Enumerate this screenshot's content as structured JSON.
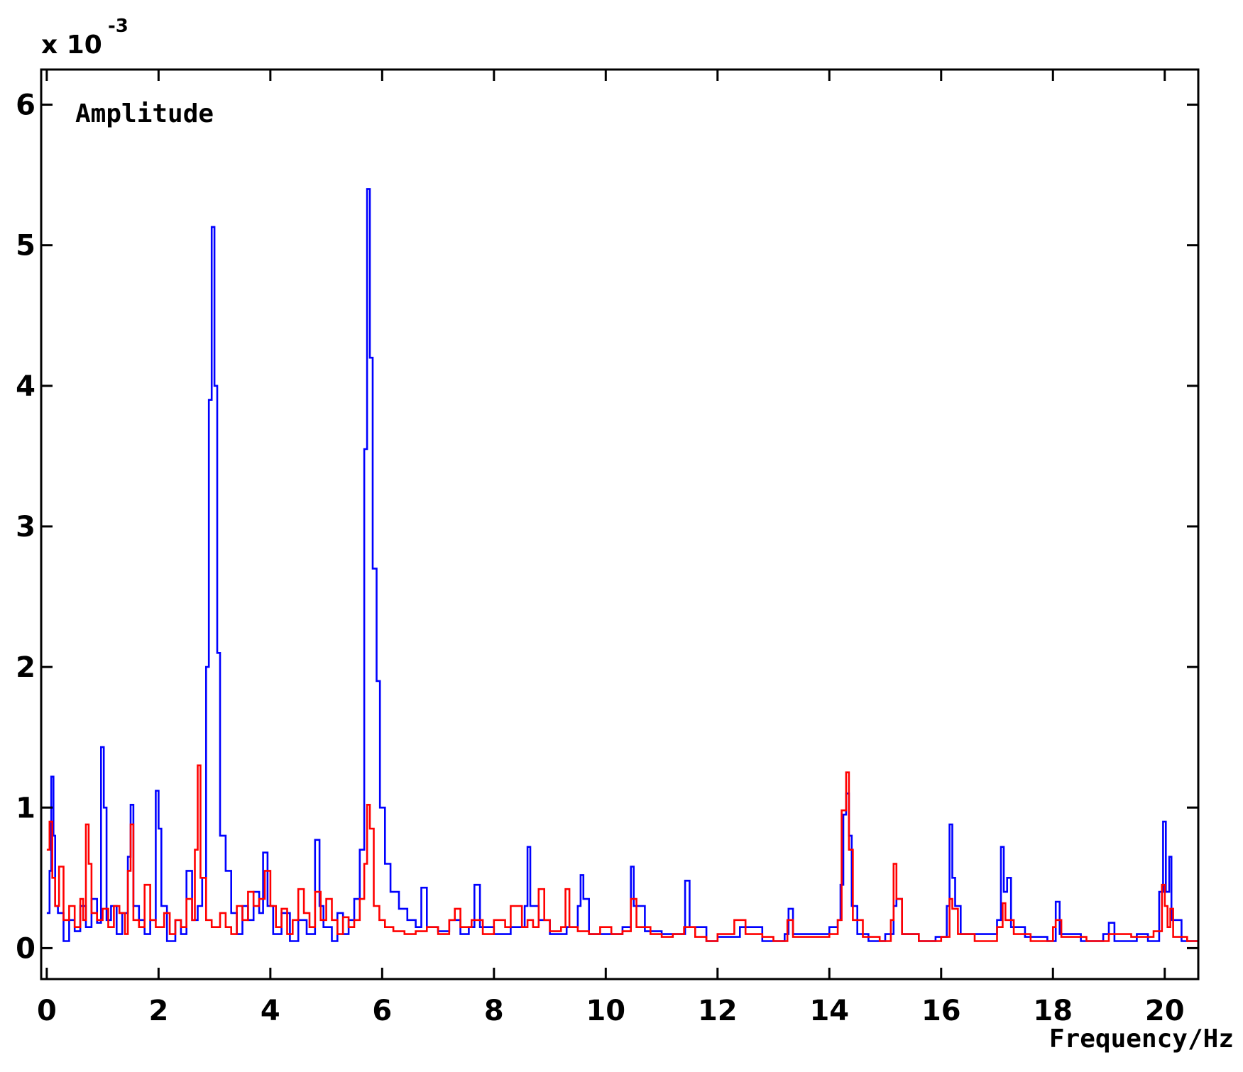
{
  "chart_data": {
    "type": "line",
    "title": "",
    "xlabel": "Frequency/Hz",
    "ylabel": "Amplitude",
    "y_scale_label": "x 10",
    "y_scale_exponent": "-3",
    "xlim": [
      -0.1,
      20.6
    ],
    "ylim": [
      -0.22,
      6.25
    ],
    "x_ticks": [
      0,
      2,
      4,
      6,
      8,
      10,
      12,
      14,
      16,
      18,
      20
    ],
    "y_ticks": [
      0,
      1,
      2,
      3,
      4,
      5,
      6
    ],
    "x_tick_labels": [
      "0",
      "2",
      "4",
      "6",
      "8",
      "10",
      "12",
      "14",
      "16",
      "18",
      "20"
    ],
    "y_tick_labels": [
      "0",
      "1",
      "2",
      "3",
      "4",
      "5",
      "6"
    ],
    "grid": false,
    "legend": "none",
    "series": [
      {
        "color": "#0000ff",
        "points": [
          [
            0.0,
            0.25
          ],
          [
            0.05,
            0.55
          ],
          [
            0.08,
            1.22
          ],
          [
            0.12,
            0.8
          ],
          [
            0.15,
            0.3
          ],
          [
            0.2,
            0.25
          ],
          [
            0.3,
            0.05
          ],
          [
            0.4,
            0.2
          ],
          [
            0.5,
            0.12
          ],
          [
            0.6,
            0.3
          ],
          [
            0.7,
            0.15
          ],
          [
            0.8,
            0.35
          ],
          [
            0.9,
            0.18
          ],
          [
            0.97,
            1.43
          ],
          [
            1.02,
            1.0
          ],
          [
            1.07,
            0.2
          ],
          [
            1.15,
            0.3
          ],
          [
            1.25,
            0.1
          ],
          [
            1.35,
            0.25
          ],
          [
            1.45,
            0.65
          ],
          [
            1.5,
            1.02
          ],
          [
            1.55,
            0.3
          ],
          [
            1.65,
            0.2
          ],
          [
            1.75,
            0.1
          ],
          [
            1.85,
            0.2
          ],
          [
            1.95,
            1.12
          ],
          [
            2.0,
            0.85
          ],
          [
            2.05,
            0.3
          ],
          [
            2.15,
            0.05
          ],
          [
            2.3,
            0.2
          ],
          [
            2.4,
            0.1
          ],
          [
            2.5,
            0.55
          ],
          [
            2.6,
            0.2
          ],
          [
            2.7,
            0.3
          ],
          [
            2.78,
            0.5
          ],
          [
            2.85,
            2.0
          ],
          [
            2.9,
            3.9
          ],
          [
            2.95,
            5.13
          ],
          [
            3.0,
            4.0
          ],
          [
            3.05,
            2.1
          ],
          [
            3.1,
            0.8
          ],
          [
            3.2,
            0.55
          ],
          [
            3.3,
            0.25
          ],
          [
            3.4,
            0.1
          ],
          [
            3.5,
            0.3
          ],
          [
            3.6,
            0.2
          ],
          [
            3.7,
            0.4
          ],
          [
            3.8,
            0.25
          ],
          [
            3.87,
            0.68
          ],
          [
            3.95,
            0.3
          ],
          [
            4.05,
            0.1
          ],
          [
            4.2,
            0.25
          ],
          [
            4.35,
            0.05
          ],
          [
            4.5,
            0.2
          ],
          [
            4.65,
            0.1
          ],
          [
            4.8,
            0.77
          ],
          [
            4.88,
            0.3
          ],
          [
            4.95,
            0.15
          ],
          [
            5.1,
            0.05
          ],
          [
            5.2,
            0.25
          ],
          [
            5.3,
            0.1
          ],
          [
            5.4,
            0.2
          ],
          [
            5.5,
            0.35
          ],
          [
            5.6,
            0.7
          ],
          [
            5.68,
            3.55
          ],
          [
            5.73,
            5.4
          ],
          [
            5.78,
            4.2
          ],
          [
            5.83,
            2.7
          ],
          [
            5.9,
            1.9
          ],
          [
            5.96,
            1.0
          ],
          [
            6.05,
            0.6
          ],
          [
            6.15,
            0.4
          ],
          [
            6.3,
            0.28
          ],
          [
            6.45,
            0.2
          ],
          [
            6.6,
            0.15
          ],
          [
            6.7,
            0.43
          ],
          [
            6.8,
            0.15
          ],
          [
            7.0,
            0.12
          ],
          [
            7.2,
            0.2
          ],
          [
            7.4,
            0.1
          ],
          [
            7.55,
            0.15
          ],
          [
            7.65,
            0.45
          ],
          [
            7.75,
            0.15
          ],
          [
            8.0,
            0.1
          ],
          [
            8.3,
            0.15
          ],
          [
            8.55,
            0.3
          ],
          [
            8.6,
            0.72
          ],
          [
            8.65,
            0.3
          ],
          [
            8.8,
            0.2
          ],
          [
            9.0,
            0.1
          ],
          [
            9.3,
            0.15
          ],
          [
            9.5,
            0.3
          ],
          [
            9.55,
            0.52
          ],
          [
            9.6,
            0.35
          ],
          [
            9.7,
            0.1
          ],
          [
            10.0,
            0.1
          ],
          [
            10.3,
            0.15
          ],
          [
            10.45,
            0.58
          ],
          [
            10.5,
            0.3
          ],
          [
            10.7,
            0.12
          ],
          [
            11.0,
            0.1
          ],
          [
            11.3,
            0.1
          ],
          [
            11.42,
            0.48
          ],
          [
            11.5,
            0.15
          ],
          [
            11.8,
            0.05
          ],
          [
            12.0,
            0.08
          ],
          [
            12.4,
            0.15
          ],
          [
            12.8,
            0.05
          ],
          [
            13.2,
            0.1
          ],
          [
            13.27,
            0.28
          ],
          [
            13.35,
            0.1
          ],
          [
            13.7,
            0.1
          ],
          [
            14.0,
            0.15
          ],
          [
            14.15,
            0.2
          ],
          [
            14.2,
            0.45
          ],
          [
            14.25,
            0.95
          ],
          [
            14.3,
            1.1
          ],
          [
            14.35,
            0.8
          ],
          [
            14.4,
            0.3
          ],
          [
            14.5,
            0.1
          ],
          [
            14.7,
            0.05
          ],
          [
            15.0,
            0.1
          ],
          [
            15.15,
            0.3
          ],
          [
            15.2,
            0.35
          ],
          [
            15.3,
            0.1
          ],
          [
            15.6,
            0.05
          ],
          [
            15.9,
            0.08
          ],
          [
            16.1,
            0.3
          ],
          [
            16.15,
            0.88
          ],
          [
            16.2,
            0.5
          ],
          [
            16.25,
            0.3
          ],
          [
            16.35,
            0.1
          ],
          [
            16.7,
            0.1
          ],
          [
            17.0,
            0.2
          ],
          [
            17.07,
            0.72
          ],
          [
            17.12,
            0.4
          ],
          [
            17.18,
            0.5
          ],
          [
            17.25,
            0.15
          ],
          [
            17.5,
            0.08
          ],
          [
            17.9,
            0.05
          ],
          [
            18.05,
            0.33
          ],
          [
            18.12,
            0.1
          ],
          [
            18.5,
            0.05
          ],
          [
            18.9,
            0.1
          ],
          [
            19.0,
            0.18
          ],
          [
            19.1,
            0.05
          ],
          [
            19.5,
            0.1
          ],
          [
            19.7,
            0.05
          ],
          [
            19.9,
            0.4
          ],
          [
            19.97,
            0.9
          ],
          [
            20.02,
            0.4
          ],
          [
            20.08,
            0.65
          ],
          [
            20.12,
            0.2
          ],
          [
            20.3,
            0.05
          ],
          [
            20.6,
            0.12
          ]
        ]
      },
      {
        "color": "#ff0000",
        "points": [
          [
            0.0,
            0.7
          ],
          [
            0.05,
            0.9
          ],
          [
            0.1,
            0.5
          ],
          [
            0.15,
            0.3
          ],
          [
            0.22,
            0.58
          ],
          [
            0.3,
            0.2
          ],
          [
            0.4,
            0.3
          ],
          [
            0.5,
            0.15
          ],
          [
            0.6,
            0.35
          ],
          [
            0.65,
            0.2
          ],
          [
            0.7,
            0.88
          ],
          [
            0.75,
            0.6
          ],
          [
            0.8,
            0.25
          ],
          [
            0.9,
            0.2
          ],
          [
            1.0,
            0.28
          ],
          [
            1.1,
            0.15
          ],
          [
            1.2,
            0.3
          ],
          [
            1.3,
            0.25
          ],
          [
            1.4,
            0.1
          ],
          [
            1.45,
            0.55
          ],
          [
            1.5,
            0.88
          ],
          [
            1.55,
            0.2
          ],
          [
            1.65,
            0.15
          ],
          [
            1.75,
            0.45
          ],
          [
            1.85,
            0.2
          ],
          [
            1.95,
            0.15
          ],
          [
            2.1,
            0.25
          ],
          [
            2.2,
            0.1
          ],
          [
            2.3,
            0.2
          ],
          [
            2.4,
            0.15
          ],
          [
            2.5,
            0.35
          ],
          [
            2.6,
            0.2
          ],
          [
            2.65,
            0.7
          ],
          [
            2.7,
            1.3
          ],
          [
            2.75,
            0.5
          ],
          [
            2.85,
            0.2
          ],
          [
            2.95,
            0.15
          ],
          [
            3.1,
            0.25
          ],
          [
            3.2,
            0.15
          ],
          [
            3.3,
            0.1
          ],
          [
            3.4,
            0.3
          ],
          [
            3.5,
            0.2
          ],
          [
            3.6,
            0.4
          ],
          [
            3.7,
            0.3
          ],
          [
            3.8,
            0.35
          ],
          [
            3.9,
            0.55
          ],
          [
            4.0,
            0.3
          ],
          [
            4.1,
            0.15
          ],
          [
            4.2,
            0.28
          ],
          [
            4.3,
            0.1
          ],
          [
            4.4,
            0.2
          ],
          [
            4.5,
            0.42
          ],
          [
            4.6,
            0.25
          ],
          [
            4.7,
            0.15
          ],
          [
            4.8,
            0.4
          ],
          [
            4.9,
            0.2
          ],
          [
            5.0,
            0.35
          ],
          [
            5.1,
            0.2
          ],
          [
            5.2,
            0.1
          ],
          [
            5.3,
            0.22
          ],
          [
            5.4,
            0.15
          ],
          [
            5.5,
            0.2
          ],
          [
            5.6,
            0.35
          ],
          [
            5.68,
            0.6
          ],
          [
            5.73,
            1.02
          ],
          [
            5.78,
            0.85
          ],
          [
            5.85,
            0.3
          ],
          [
            5.95,
            0.2
          ],
          [
            6.05,
            0.15
          ],
          [
            6.2,
            0.12
          ],
          [
            6.4,
            0.1
          ],
          [
            6.6,
            0.12
          ],
          [
            6.8,
            0.15
          ],
          [
            7.0,
            0.1
          ],
          [
            7.2,
            0.2
          ],
          [
            7.3,
            0.28
          ],
          [
            7.4,
            0.15
          ],
          [
            7.6,
            0.2
          ],
          [
            7.8,
            0.1
          ],
          [
            8.0,
            0.2
          ],
          [
            8.2,
            0.15
          ],
          [
            8.3,
            0.3
          ],
          [
            8.5,
            0.15
          ],
          [
            8.6,
            0.2
          ],
          [
            8.7,
            0.15
          ],
          [
            8.8,
            0.42
          ],
          [
            8.9,
            0.2
          ],
          [
            9.0,
            0.12
          ],
          [
            9.2,
            0.15
          ],
          [
            9.28,
            0.42
          ],
          [
            9.35,
            0.15
          ],
          [
            9.5,
            0.12
          ],
          [
            9.7,
            0.1
          ],
          [
            9.9,
            0.15
          ],
          [
            10.1,
            0.1
          ],
          [
            10.3,
            0.12
          ],
          [
            10.45,
            0.35
          ],
          [
            10.55,
            0.15
          ],
          [
            10.8,
            0.1
          ],
          [
            11.0,
            0.08
          ],
          [
            11.2,
            0.1
          ],
          [
            11.4,
            0.15
          ],
          [
            11.6,
            0.08
          ],
          [
            11.8,
            0.05
          ],
          [
            12.0,
            0.1
          ],
          [
            12.3,
            0.2
          ],
          [
            12.5,
            0.1
          ],
          [
            12.8,
            0.08
          ],
          [
            13.0,
            0.05
          ],
          [
            13.25,
            0.2
          ],
          [
            13.35,
            0.08
          ],
          [
            13.7,
            0.08
          ],
          [
            14.0,
            0.1
          ],
          [
            14.15,
            0.2
          ],
          [
            14.22,
            0.98
          ],
          [
            14.3,
            1.25
          ],
          [
            14.35,
            0.7
          ],
          [
            14.42,
            0.2
          ],
          [
            14.6,
            0.08
          ],
          [
            14.9,
            0.05
          ],
          [
            15.1,
            0.2
          ],
          [
            15.15,
            0.6
          ],
          [
            15.2,
            0.35
          ],
          [
            15.3,
            0.1
          ],
          [
            15.6,
            0.05
          ],
          [
            16.0,
            0.08
          ],
          [
            16.15,
            0.35
          ],
          [
            16.2,
            0.28
          ],
          [
            16.3,
            0.1
          ],
          [
            16.6,
            0.05
          ],
          [
            17.0,
            0.15
          ],
          [
            17.1,
            0.32
          ],
          [
            17.15,
            0.2
          ],
          [
            17.3,
            0.1
          ],
          [
            17.6,
            0.05
          ],
          [
            18.0,
            0.15
          ],
          [
            18.05,
            0.2
          ],
          [
            18.15,
            0.08
          ],
          [
            18.6,
            0.05
          ],
          [
            19.0,
            0.1
          ],
          [
            19.4,
            0.08
          ],
          [
            19.8,
            0.12
          ],
          [
            19.95,
            0.45
          ],
          [
            20.0,
            0.3
          ],
          [
            20.05,
            0.15
          ],
          [
            20.1,
            0.28
          ],
          [
            20.15,
            0.08
          ],
          [
            20.4,
            0.05
          ],
          [
            20.6,
            0.1
          ]
        ]
      }
    ]
  }
}
